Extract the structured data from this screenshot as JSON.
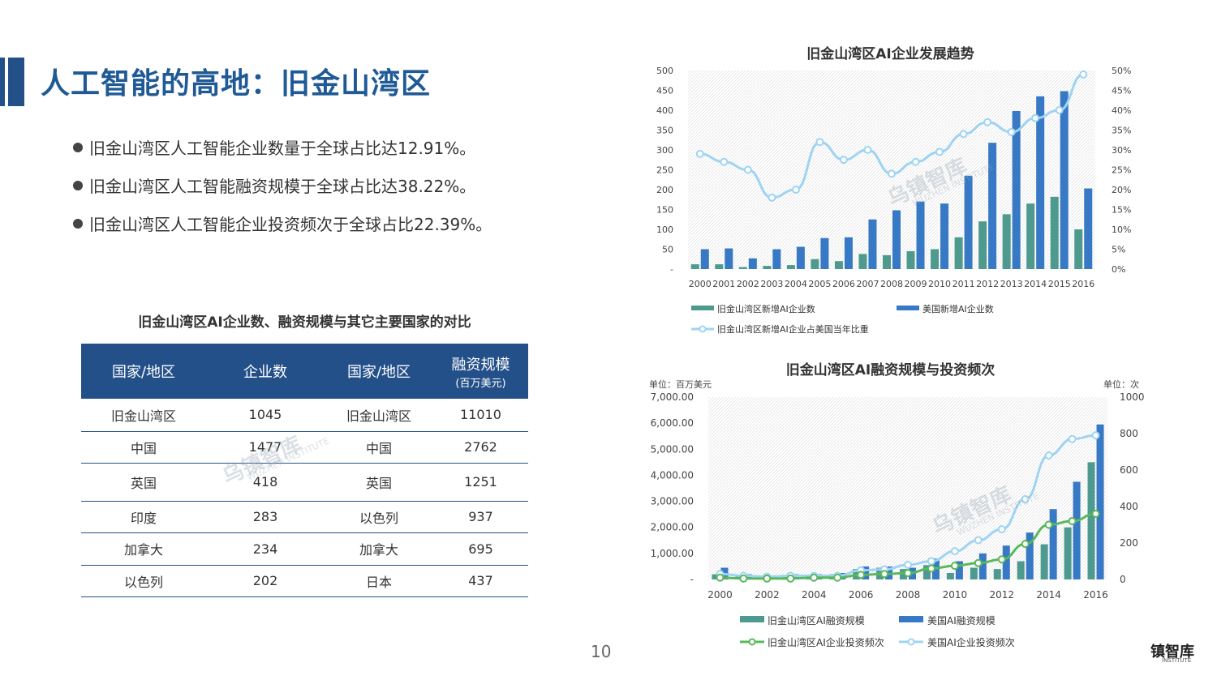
{
  "page": {
    "title": "人工智能的高地：旧金山湾区",
    "page_number": "10",
    "colors": {
      "primary": "#24508a",
      "green": "#4e9a8e",
      "blue": "#3779c4",
      "line_light": "#9ed4f2",
      "line_green": "#58b85c"
    }
  },
  "bullets": [
    "旧金山湾区人工智能企业数量于全球占比达12.91%。",
    "旧金山湾区人工智能融资规模于全球占比达38.22%。",
    "旧金山湾区人工智能企业投资频次于全球占比22.39%。"
  ],
  "table": {
    "title": "旧金山湾区AI企业数、融资规模与其它主要国家的对比",
    "headers": [
      "国家/地区",
      "企业数",
      "国家/地区",
      "融资规模"
    ],
    "header_sub": "(百万美元)",
    "rows": [
      [
        "旧金山湾区",
        "1045",
        "旧金山湾区",
        "11010"
      ],
      [
        "中国",
        "1477",
        "中国",
        "2762"
      ],
      [
        "英国",
        "418",
        "英国",
        "1251"
      ],
      [
        "印度",
        "283",
        "以色列",
        "937"
      ],
      [
        "加拿大",
        "234",
        "加拿大",
        "695"
      ],
      [
        "以色列",
        "202",
        "日本",
        "437"
      ]
    ]
  },
  "watermark": {
    "brand": "乌镇智库",
    "sub": "WUZHEN INSTITUTE"
  },
  "footer_logo": {
    "text": "镇智库",
    "sub": "INSTITUTE"
  },
  "chart_data": [
    {
      "type": "bar",
      "title": "旧金山湾区AI企业发展趋势",
      "categories": [
        "2000",
        "2001",
        "2002",
        "2003",
        "2004",
        "2005",
        "2006",
        "2007",
        "2008",
        "2009",
        "2010",
        "2011",
        "2012",
        "2013",
        "2014",
        "2015",
        "2016"
      ],
      "y_ticks_left": [
        "500",
        "450",
        "400",
        "350",
        "300",
        "250",
        "200",
        "150",
        "100",
        "50",
        "-"
      ],
      "y_ticks_right": [
        "50%",
        "45%",
        "40%",
        "35%",
        "30%",
        "25%",
        "20%",
        "15%",
        "10%",
        "5%",
        "0%"
      ],
      "ylim": [
        0,
        500
      ],
      "y2lim": [
        0,
        50
      ],
      "series": [
        {
          "name": "旧金山湾区新增AI企业数",
          "kind": "bar",
          "axis": "left",
          "values": [
            12,
            12,
            5,
            8,
            10,
            25,
            20,
            38,
            35,
            45,
            50,
            80,
            120,
            138,
            165,
            182,
            100
          ]
        },
        {
          "name": "美国新增AI企业数",
          "kind": "bar",
          "axis": "left",
          "values": [
            50,
            52,
            27,
            50,
            56,
            78,
            80,
            125,
            148,
            170,
            165,
            235,
            318,
            398,
            435,
            448,
            203
          ]
        },
        {
          "name": "旧金山湾区新增AI企业占美国当年比重",
          "kind": "line",
          "axis": "right",
          "values": [
            29,
            27,
            25,
            18,
            20,
            32,
            27.5,
            30,
            24,
            27,
            29.5,
            34,
            37,
            34.5,
            38,
            40,
            49
          ]
        }
      ],
      "legend": [
        "旧金山湾区新增AI企业数",
        "美国新增AI企业数",
        "旧金山湾区新增AI企业占美国当年比重"
      ]
    },
    {
      "type": "bar",
      "title": "旧金山湾区AI融资规模与投资频次",
      "y_unit_left": "单位：百万美元",
      "y_unit_right": "单位：次",
      "categories": [
        "2000",
        "2001",
        "2002",
        "2003",
        "2004",
        "2005",
        "2006",
        "2007",
        "2008",
        "2009",
        "2010",
        "2011",
        "2012",
        "2013",
        "2014",
        "2015",
        "2016"
      ],
      "x_tick_labels": [
        "2000",
        "2002",
        "2004",
        "2006",
        "2008",
        "2010",
        "2012",
        "2014",
        "2016"
      ],
      "y_ticks_left": [
        "7,000.00",
        "6,000.00",
        "5,000.00",
        "4,000.00",
        "3,000.00",
        "2,000.00",
        "1,000.00",
        "-"
      ],
      "y_ticks_right": [
        "1000",
        "800",
        "600",
        "400",
        "200",
        "0"
      ],
      "ylim": [
        0,
        7000
      ],
      "y2lim": [
        0,
        1000
      ],
      "series": [
        {
          "name": "旧金山湾区AI融资规模",
          "kind": "bar",
          "axis": "left",
          "values": [
            200,
            150,
            100,
            120,
            180,
            200,
            400,
            450,
            400,
            550,
            250,
            450,
            400,
            700,
            1350,
            2000,
            4500
          ]
        },
        {
          "name": "美国AI融资规模",
          "kind": "bar",
          "axis": "left",
          "values": [
            450,
            200,
            150,
            200,
            200,
            250,
            500,
            500,
            450,
            800,
            700,
            1000,
            1300,
            1800,
            2700,
            3750,
            5950
          ]
        },
        {
          "name": "旧金山湾区AI企业投资频次",
          "kind": "line",
          "axis": "right",
          "values": [
            10,
            5,
            5,
            5,
            10,
            10,
            25,
            30,
            35,
            60,
            75,
            90,
            110,
            195,
            300,
            320,
            360
          ]
        },
        {
          "name": "美国AI企业投资频次",
          "kind": "line",
          "axis": "right",
          "values": [
            30,
            20,
            15,
            20,
            20,
            20,
            50,
            55,
            80,
            100,
            155,
            215,
            275,
            440,
            680,
            770,
            790
          ]
        }
      ],
      "legend": [
        "旧金山湾区AI融资规模",
        "美国AI融资规模",
        "旧金山湾区AI企业投资频次",
        "美国AI企业投资频次"
      ]
    }
  ]
}
